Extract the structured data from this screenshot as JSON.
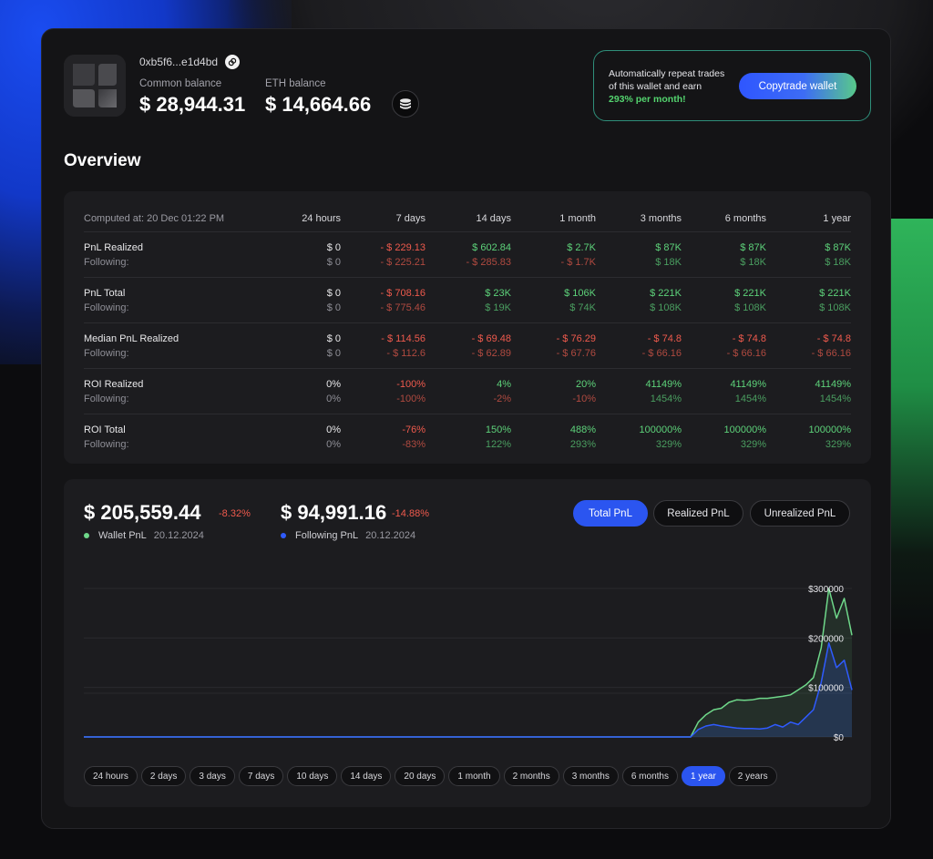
{
  "header": {
    "address": "0xb5f6...e1d4bd",
    "common_balance_label": "Common balance",
    "common_balance": "$ 28,944.31",
    "eth_balance_label": "ETH balance",
    "eth_balance": "$ 14,664.66"
  },
  "promo": {
    "line1": "Automatically repeat trades",
    "line2": "of this wallet and earn",
    "highlight": "293% per month!",
    "button": "Copytrade wallet"
  },
  "overview": {
    "title": "Overview",
    "computed_at": "Computed at: 20 Dec 01:22 PM",
    "columns": [
      "24 hours",
      "7 days",
      "14 days",
      "1 month",
      "3 months",
      "6 months",
      "1 year"
    ],
    "rows": [
      {
        "label": "PnL Realized",
        "sub_label": "Following:",
        "values": [
          "$ 0",
          "- $ 229.13",
          "$ 602.84",
          "$ 2.7K",
          "$ 87K",
          "$ 87K",
          "$ 87K"
        ],
        "sub_values": [
          "$ 0",
          "- $ 225.21",
          "- $ 285.83",
          "- $ 1.7K",
          "$ 18K",
          "$ 18K",
          "$ 18K"
        ],
        "value_tones": [
          "neu",
          "neg",
          "pos",
          "pos",
          "pos",
          "pos",
          "pos"
        ],
        "sub_tones": [
          "neu",
          "neg",
          "neg",
          "neg",
          "pos",
          "pos",
          "pos"
        ]
      },
      {
        "label": "PnL Total",
        "sub_label": "Following:",
        "values": [
          "$ 0",
          "- $ 708.16",
          "$ 23K",
          "$ 106K",
          "$ 221K",
          "$ 221K",
          "$ 221K"
        ],
        "sub_values": [
          "$ 0",
          "- $ 775.46",
          "$ 19K",
          "$ 74K",
          "$ 108K",
          "$ 108K",
          "$ 108K"
        ],
        "value_tones": [
          "neu",
          "neg",
          "pos",
          "pos",
          "pos",
          "pos",
          "pos"
        ],
        "sub_tones": [
          "neu",
          "neg",
          "pos",
          "pos",
          "pos",
          "pos",
          "pos"
        ]
      },
      {
        "label": "Median PnL Realized",
        "sub_label": "Following:",
        "values": [
          "$ 0",
          "- $ 114.56",
          "- $ 69.48",
          "- $ 76.29",
          "- $ 74.8",
          "- $ 74.8",
          "- $ 74.8"
        ],
        "sub_values": [
          "$ 0",
          "- $ 112.6",
          "- $ 62.89",
          "- $ 67.76",
          "- $ 66.16",
          "- $ 66.16",
          "- $ 66.16"
        ],
        "value_tones": [
          "neu",
          "neg",
          "neg",
          "neg",
          "neg",
          "neg",
          "neg"
        ],
        "sub_tones": [
          "neu",
          "neg",
          "neg",
          "neg",
          "neg",
          "neg",
          "neg"
        ]
      },
      {
        "label": "ROI Realized",
        "sub_label": "Following:",
        "values": [
          "0%",
          "-100%",
          "4%",
          "20%",
          "41149%",
          "41149%",
          "41149%"
        ],
        "sub_values": [
          "0%",
          "-100%",
          "-2%",
          "-10%",
          "1454%",
          "1454%",
          "1454%"
        ],
        "value_tones": [
          "neu",
          "neg",
          "pos",
          "pos",
          "pos",
          "pos",
          "pos"
        ],
        "sub_tones": [
          "neu",
          "neg",
          "neg",
          "neg",
          "pos",
          "pos",
          "pos"
        ]
      },
      {
        "label": "ROI Total",
        "sub_label": "Following:",
        "values": [
          "0%",
          "-76%",
          "150%",
          "488%",
          "100000%",
          "100000%",
          "100000%"
        ],
        "sub_values": [
          "0%",
          "-83%",
          "122%",
          "293%",
          "329%",
          "329%",
          "329%"
        ],
        "value_tones": [
          "neu",
          "neg",
          "pos",
          "pos",
          "pos",
          "pos",
          "pos"
        ],
        "sub_tones": [
          "neu",
          "neg",
          "pos",
          "pos",
          "pos",
          "pos",
          "pos"
        ]
      }
    ]
  },
  "pnl": {
    "wallet_value": "$ 205,559.44",
    "wallet_change": "-8.32%",
    "wallet_label": "Wallet PnL",
    "wallet_date": "20.12.2024",
    "following_value": "$ 94,991.16",
    "following_change": "-14.88%",
    "following_label": "Following PnL",
    "following_date": "20.12.2024",
    "tabs": [
      "Total PnL",
      "Realized PnL",
      "Unrealized PnL"
    ],
    "active_tab": 0,
    "ranges": [
      "24 hours",
      "2 days",
      "3 days",
      "7 days",
      "10 days",
      "14 days",
      "20 days",
      "1 month",
      "2 months",
      "3 months",
      "6 months",
      "1 year",
      "2 years"
    ],
    "active_range": 11
  },
  "colors": {
    "accent_blue": "#2b55f0",
    "positive": "#5dd27a",
    "negative": "#ef5a4d",
    "wallet_line": "#6fd88a",
    "following_line": "#2f5bff"
  },
  "chart_data": {
    "type": "line",
    "ylim": [
      0,
      300000
    ],
    "y_ticks": [
      0,
      100000,
      200000,
      300000
    ],
    "y_tick_labels": [
      "$0",
      "$100000",
      "$200000",
      "$300000"
    ],
    "grid": true,
    "x": [
      0,
      10,
      20,
      30,
      40,
      50,
      60,
      70,
      75,
      79,
      80,
      81,
      82,
      83,
      84,
      85,
      86,
      87,
      88,
      89,
      90,
      91,
      92,
      93,
      94,
      95,
      96,
      97,
      98,
      99,
      100
    ],
    "series": [
      {
        "name": "Wallet PnL",
        "values": [
          0,
          0,
          0,
          0,
          0,
          0,
          0,
          0,
          0,
          0,
          30000,
          45000,
          55000,
          58000,
          70000,
          75000,
          74000,
          75000,
          78000,
          78000,
          80000,
          82000,
          85000,
          95000,
          105000,
          120000,
          180000,
          300000,
          240000,
          280000,
          205559
        ]
      },
      {
        "name": "Following PnL",
        "values": [
          0,
          0,
          0,
          0,
          0,
          0,
          0,
          0,
          0,
          0,
          15000,
          22000,
          25000,
          22000,
          20000,
          18000,
          17000,
          17000,
          16000,
          18000,
          25000,
          20000,
          30000,
          25000,
          40000,
          55000,
          110000,
          190000,
          140000,
          155000,
          94991
        ]
      }
    ]
  }
}
